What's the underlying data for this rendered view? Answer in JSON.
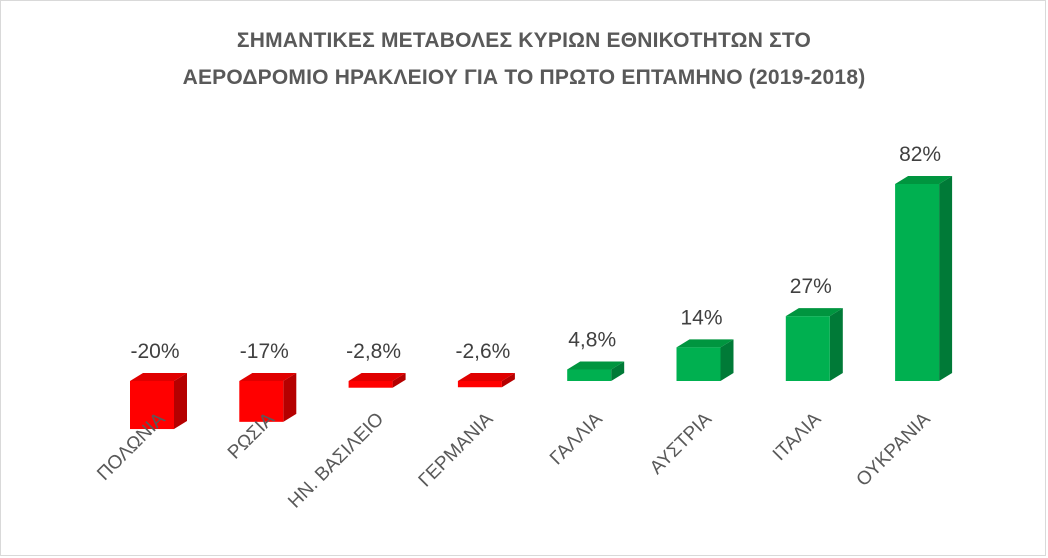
{
  "chart_data": {
    "type": "bar",
    "title_lines": [
      "ΣΗΜΑΝΤΙΚΕΣ ΜΕΤΑΒΟΛΕΣ ΚΥΡΙΩΝ ΕΘΝΙΚΟΤΗΤΩΝ ΣΤΟ",
      "ΑΕΡΟΔΡΟΜΙΟ ΗΡΑΚΛΕΙΟΥ ΓΙΑ ΤΟ ΠΡΩΤΟ ΕΠΤΑΜΗΝΟ (2019-2018)"
    ],
    "categories": [
      "ΠΟΛΩΝΙΑ",
      "ΡΩΣΙΑ",
      "ΗΝ. ΒΑΣΙΛΕΙΟ",
      "ΓΕΡΜΑΝΙΑ",
      "ΓΑΛΛΙΑ",
      "ΑΥΣΤΡΙΑ",
      "ΙΤΑΛΙΑ",
      "ΟΥΚΡΑΝΙΑ"
    ],
    "values": [
      -20,
      -17,
      -2.8,
      -2.6,
      4.8,
      14,
      27,
      82
    ],
    "data_labels": [
      "-20%",
      "-17%",
      "-2,8%",
      "-2,6%",
      "4,8%",
      "14%",
      "27%",
      "82%"
    ],
    "unit": "%",
    "ylim": [
      -20,
      82
    ],
    "grid": false,
    "legend": "none",
    "style": "3d-column",
    "colors": {
      "negative_front": "#ff0000",
      "negative_side": "#b50000",
      "negative_top": "#e00000",
      "positive_front": "#00b050",
      "positive_side": "#007a37",
      "positive_top": "#00953f"
    }
  }
}
